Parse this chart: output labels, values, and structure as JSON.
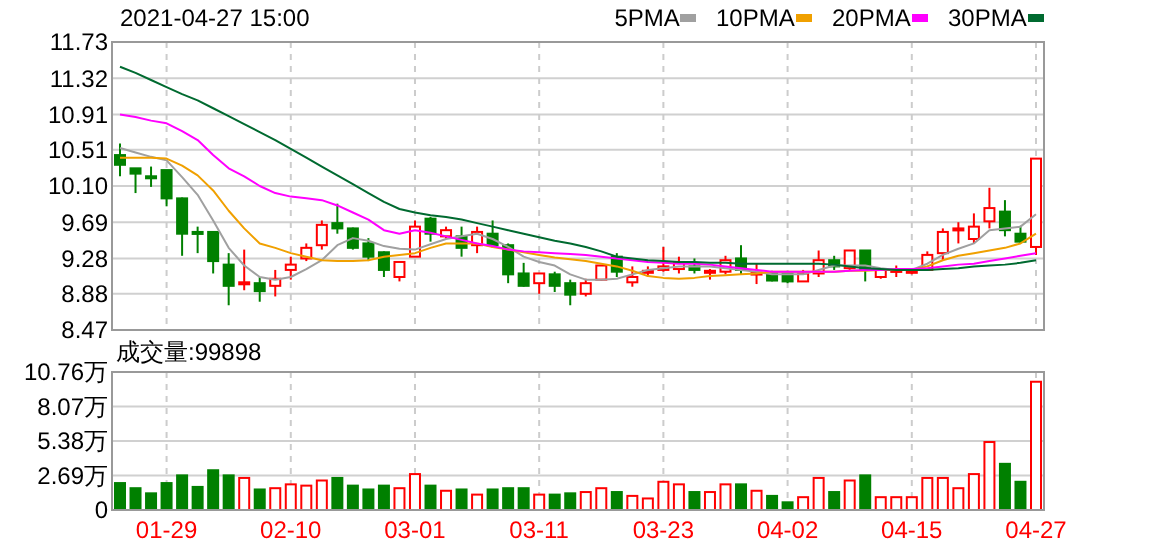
{
  "chart_data": [
    {
      "type": "candlestick",
      "title": "2021-04-27 15:00",
      "tick_labels": "y",
      "grid": true,
      "legend": "top right",
      "categories": [
        null,
        null,
        null,
        null,
        null,
        null,
        null,
        null,
        null,
        null,
        null,
        null,
        null,
        null,
        null,
        null,
        null,
        null,
        null,
        null,
        null,
        null,
        null,
        null,
        null,
        null,
        null,
        null,
        null,
        null,
        null,
        null,
        null,
        null,
        null,
        null,
        null,
        null,
        null,
        null,
        null,
        null,
        null,
        null,
        null,
        null,
        null,
        null,
        null,
        null,
        null,
        null,
        null,
        null,
        null,
        null,
        null,
        null,
        null,
        null
      ],
      "ylim": [
        8.47,
        11.73
      ],
      "yticks": [
        8.47,
        8.88,
        9.28,
        9.69,
        {
          "value": 10.1,
          "label": "10.10"
        },
        10.51,
        10.91,
        11.32,
        11.73
      ],
      "ohlc": [
        [
          10.45,
          10.58,
          10.21,
          10.34
        ],
        [
          10.3,
          10.3,
          10.02,
          10.24
        ],
        [
          10.21,
          10.32,
          10.09,
          10.19
        ],
        [
          10.28,
          10.28,
          9.87,
          9.96
        ],
        [
          9.96,
          9.97,
          9.31,
          9.56
        ],
        [
          9.58,
          9.64,
          9.34,
          9.56
        ],
        [
          9.58,
          9.58,
          9.11,
          9.25
        ],
        [
          9.21,
          9.34,
          8.75,
          8.97
        ],
        [
          8.99,
          9.38,
          8.92,
          9.01
        ],
        [
          9.0,
          9.07,
          8.79,
          8.91
        ],
        [
          8.97,
          9.15,
          8.85,
          9.05
        ],
        [
          9.15,
          9.3,
          9.04,
          9.21
        ],
        [
          9.28,
          9.45,
          9.25,
          9.4
        ],
        [
          9.43,
          9.71,
          9.38,
          9.66
        ],
        [
          9.68,
          9.9,
          9.56,
          9.62
        ],
        [
          9.62,
          9.63,
          9.38,
          9.4
        ],
        [
          9.45,
          9.51,
          9.25,
          9.3
        ],
        [
          9.35,
          9.36,
          9.07,
          9.15
        ],
        [
          9.07,
          9.24,
          9.02,
          9.24
        ],
        [
          9.3,
          9.71,
          9.3,
          9.64
        ],
        [
          9.73,
          9.75,
          9.47,
          9.56
        ],
        [
          9.53,
          9.64,
          9.5,
          9.6
        ],
        [
          9.53,
          9.64,
          9.3,
          9.4
        ],
        [
          9.43,
          9.64,
          9.34,
          9.58
        ],
        [
          9.56,
          9.71,
          9.4,
          9.43
        ],
        [
          9.43,
          9.45,
          9.0,
          9.1
        ],
        [
          9.11,
          9.23,
          8.96,
          8.97
        ],
        [
          9.0,
          9.11,
          8.88,
          9.11
        ],
        [
          9.1,
          9.13,
          8.9,
          8.97
        ],
        [
          9.0,
          9.04,
          8.75,
          8.87
        ],
        [
          8.88,
          9.05,
          8.85,
          9.0
        ],
        [
          9.04,
          9.2,
          9.03,
          9.2
        ],
        [
          9.3,
          9.34,
          9.07,
          9.13
        ],
        [
          9.01,
          9.19,
          8.96,
          9.07
        ],
        [
          9.13,
          9.19,
          9.07,
          9.14
        ],
        [
          9.15,
          9.41,
          9.13,
          9.19
        ],
        [
          9.16,
          9.3,
          9.11,
          9.24
        ],
        [
          9.19,
          9.28,
          9.11,
          9.15
        ],
        [
          9.13,
          9.16,
          9.04,
          9.14
        ],
        [
          9.13,
          9.31,
          9.1,
          9.26
        ],
        [
          9.28,
          9.43,
          9.1,
          9.15
        ],
        [
          9.1,
          9.22,
          8.99,
          9.12
        ],
        [
          9.12,
          9.14,
          9.02,
          9.03
        ],
        [
          9.11,
          9.11,
          9.0,
          9.02
        ],
        [
          9.02,
          9.15,
          9.02,
          9.11
        ],
        [
          9.11,
          9.37,
          9.07,
          9.26
        ],
        [
          9.26,
          9.31,
          9.15,
          9.19
        ],
        [
          9.17,
          9.37,
          9.15,
          9.37
        ],
        [
          9.37,
          9.37,
          9.02,
          9.15
        ],
        [
          9.07,
          9.15,
          9.05,
          9.15
        ],
        [
          9.14,
          9.2,
          9.07,
          9.15
        ],
        [
          9.12,
          9.15,
          9.1,
          9.14
        ],
        [
          9.15,
          9.36,
          9.15,
          9.32
        ],
        [
          9.34,
          9.62,
          9.26,
          9.58
        ],
        [
          9.6,
          9.69,
          9.45,
          9.62
        ],
        [
          9.5,
          9.79,
          9.45,
          9.64
        ],
        [
          9.7,
          10.08,
          9.62,
          9.85
        ],
        [
          9.81,
          9.94,
          9.53,
          9.6
        ],
        [
          9.56,
          9.65,
          9.45,
          9.47
        ],
        [
          9.41,
          10.41,
          9.32,
          10.41
        ]
      ],
      "colors": [
        "#008000",
        "#008000",
        "#008000",
        "#008000",
        "#008000",
        "#008000",
        "#008000",
        "#008000",
        "#ff0000",
        "#008000",
        "#ff0000",
        "#ff0000",
        "#ff0000",
        "#ff0000",
        "#008000",
        "#008000",
        "#008000",
        "#008000",
        "#ff0000",
        "#ff0000",
        "#008000",
        "#ff0000",
        "#008000",
        "#ff0000",
        "#008000",
        "#008000",
        "#008000",
        "#ff0000",
        "#008000",
        "#008000",
        "#ff0000",
        "#ff0000",
        "#008000",
        "#ff0000",
        "#ff0000",
        "#ff0000",
        "#ff0000",
        "#008000",
        "#ff0000",
        "#ff0000",
        "#008000",
        "#ff0000",
        "#008000",
        "#008000",
        "#ff0000",
        "#ff0000",
        "#008000",
        "#ff0000",
        "#008000",
        "#ff0000",
        "#ff0000",
        "#ff0000",
        "#ff0000",
        "#ff0000",
        "#ff0000",
        "#ff0000",
        "#ff0000",
        "#008000",
        "#008000",
        "#ff0000"
      ],
      "series": [
        {
          "name": "5PMA",
          "type": "line",
          "color": "#a0a0a0",
          "values": [
            10.53,
            10.48,
            10.43,
            10.39,
            10.2,
            10.0,
            9.71,
            9.4,
            9.2,
            9.07,
            9.04,
            9.07,
            9.16,
            9.26,
            9.43,
            9.51,
            9.48,
            9.42,
            9.39,
            9.38,
            9.44,
            9.5,
            9.53,
            9.56,
            9.5,
            9.41,
            9.3,
            9.24,
            9.2,
            9.1,
            9.04,
            9.04,
            9.05,
            9.1,
            9.15,
            9.17,
            9.19,
            9.19,
            9.19,
            9.17,
            9.15,
            9.13,
            9.1,
            9.1,
            9.1,
            9.15,
            9.2,
            9.2,
            9.2,
            9.17,
            9.15,
            9.15,
            9.22,
            9.32,
            9.39,
            9.45,
            9.6,
            9.62,
            9.64,
            9.78
          ]
        },
        {
          "name": "10PMA",
          "type": "line",
          "color": "#f0a000",
          "values": [
            10.42,
            10.42,
            10.42,
            10.41,
            10.33,
            10.22,
            10.05,
            9.82,
            9.62,
            9.45,
            9.4,
            9.34,
            9.3,
            9.26,
            9.25,
            9.25,
            9.26,
            9.3,
            9.32,
            9.34,
            9.4,
            9.45,
            9.45,
            9.45,
            9.41,
            9.38,
            9.35,
            9.32,
            9.29,
            9.27,
            9.25,
            9.22,
            9.19,
            9.14,
            9.08,
            9.06,
            9.05,
            9.06,
            9.08,
            9.09,
            9.1,
            9.11,
            9.13,
            9.13,
            9.13,
            9.13,
            9.13,
            9.14,
            9.14,
            9.15,
            9.15,
            9.15,
            9.19,
            9.26,
            9.31,
            9.34,
            9.37,
            9.4,
            9.45,
            9.56
          ]
        },
        {
          "name": "20PMA",
          "type": "line",
          "color": "#ff00ff",
          "values": [
            10.91,
            10.88,
            10.84,
            10.81,
            10.72,
            10.62,
            10.45,
            10.3,
            10.21,
            10.1,
            10.02,
            9.98,
            9.96,
            9.94,
            9.88,
            9.8,
            9.72,
            9.6,
            9.56,
            9.6,
            9.57,
            9.53,
            9.49,
            9.45,
            9.42,
            9.38,
            9.36,
            9.35,
            9.34,
            9.33,
            9.32,
            9.3,
            9.28,
            9.26,
            9.24,
            9.23,
            9.22,
            9.22,
            9.21,
            9.19,
            9.17,
            9.15,
            9.13,
            9.13,
            9.13,
            9.13,
            9.13,
            9.14,
            9.15,
            9.15,
            9.16,
            9.16,
            9.17,
            9.19,
            9.21,
            9.22,
            9.25,
            9.28,
            9.31,
            9.34
          ]
        },
        {
          "name": "30PMA",
          "type": "line",
          "color": "#006a30",
          "values": [
            11.45,
            11.38,
            11.3,
            11.22,
            11.14,
            11.07,
            10.98,
            10.89,
            10.8,
            10.71,
            10.62,
            10.52,
            10.42,
            10.32,
            10.22,
            10.12,
            10.02,
            9.92,
            9.84,
            9.8,
            9.77,
            9.75,
            9.72,
            9.68,
            9.64,
            9.6,
            9.56,
            9.52,
            9.48,
            9.45,
            9.41,
            9.36,
            9.3,
            9.28,
            9.26,
            9.25,
            9.24,
            9.24,
            9.23,
            9.23,
            9.22,
            9.22,
            9.22,
            9.22,
            9.22,
            9.22,
            9.21,
            9.19,
            9.17,
            9.16,
            9.15,
            9.15,
            9.15,
            9.16,
            9.17,
            9.19,
            9.2,
            9.21,
            9.23,
            9.26
          ]
        }
      ]
    },
    {
      "type": "bar",
      "title": "成交量:99898",
      "grid": true,
      "categories": [
        null,
        null,
        null,
        "01-29",
        null,
        null,
        null,
        null,
        null,
        null,
        null,
        "02-10",
        null,
        null,
        null,
        null,
        null,
        null,
        null,
        "03-01",
        null,
        null,
        null,
        null,
        null,
        null,
        null,
        "03-11",
        null,
        null,
        null,
        null,
        null,
        null,
        null,
        "03-23",
        null,
        null,
        null,
        null,
        null,
        null,
        null,
        "04-02",
        null,
        null,
        null,
        null,
        null,
        null,
        null,
        "04-15",
        null,
        null,
        null,
        null,
        null,
        null,
        null,
        "04-27"
      ],
      "ylim": [
        0,
        10.76
      ],
      "yticks": [
        0,
        {
          "value": 2.69,
          "label": "2.69万"
        },
        {
          "value": 5.38,
          "label": "5.38万"
        },
        {
          "value": 8.07,
          "label": "8.07万"
        },
        {
          "value": 10.76,
          "label": "10.76万"
        }
      ],
      "values": [
        2.1,
        1.7,
        1.3,
        2.1,
        2.7,
        1.8,
        3.1,
        2.7,
        2.5,
        1.6,
        1.7,
        2.0,
        1.9,
        2.3,
        2.5,
        1.9,
        1.6,
        1.9,
        1.7,
        2.8,
        1.9,
        1.5,
        1.6,
        1.2,
        1.6,
        1.7,
        1.7,
        1.2,
        1.2,
        1.3,
        1.4,
        1.7,
        1.4,
        1.1,
        0.9,
        2.2,
        2.0,
        1.4,
        1.4,
        2.0,
        2.0,
        1.5,
        1.1,
        0.6,
        1.0,
        2.5,
        1.4,
        2.3,
        2.7,
        1.0,
        1.0,
        1.0,
        2.5,
        2.5,
        1.7,
        2.8,
        5.3,
        3.6,
        2.2,
        10.0
      ],
      "colors": [
        "#008000",
        "#008000",
        "#008000",
        "#008000",
        "#008000",
        "#008000",
        "#008000",
        "#008000",
        "#ff0000",
        "#008000",
        "#ff0000",
        "#ff0000",
        "#ff0000",
        "#ff0000",
        "#008000",
        "#008000",
        "#008000",
        "#008000",
        "#ff0000",
        "#ff0000",
        "#008000",
        "#ff0000",
        "#008000",
        "#ff0000",
        "#008000",
        "#008000",
        "#008000",
        "#ff0000",
        "#008000",
        "#008000",
        "#ff0000",
        "#ff0000",
        "#008000",
        "#ff0000",
        "#ff0000",
        "#ff0000",
        "#ff0000",
        "#008000",
        "#ff0000",
        "#ff0000",
        "#008000",
        "#ff0000",
        "#008000",
        "#008000",
        "#ff0000",
        "#ff0000",
        "#008000",
        "#ff0000",
        "#008000",
        "#ff0000",
        "#ff0000",
        "#ff0000",
        "#ff0000",
        "#ff0000",
        "#ff0000",
        "#ff0000",
        "#ff0000",
        "#008000",
        "#008000",
        "#ff0000"
      ]
    }
  ]
}
